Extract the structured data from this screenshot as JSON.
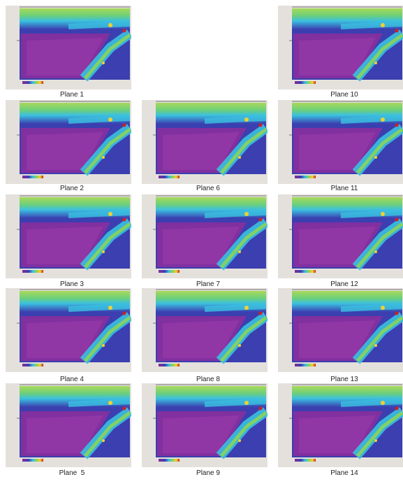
{
  "panels": [
    {
      "label": "Plane 1"
    },
    {
      "label": "Plane 10"
    },
    {
      "label": "Plane 2"
    },
    {
      "label": "Plane 6"
    },
    {
      "label": "Plane 11"
    },
    {
      "label": "Plane 3"
    },
    {
      "label": "Plane 7"
    },
    {
      "label": "Plane 12"
    },
    {
      "label": "Plane 4"
    },
    {
      "label": "Plane 8"
    },
    {
      "label": "Plane 13"
    },
    {
      "label": "Plane  5"
    },
    {
      "label": "Plane 9"
    },
    {
      "label": "Plane 14"
    }
  ]
}
